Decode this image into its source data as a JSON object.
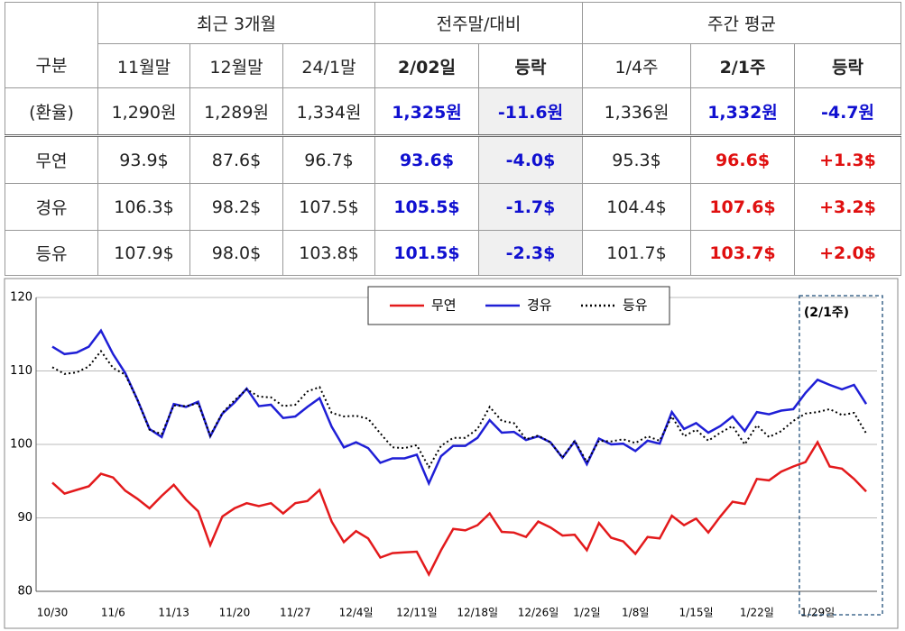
{
  "table": {
    "group_headers": [
      "최근 3개월",
      "전주말/대비",
      "주간 평균"
    ],
    "columns": [
      "구분",
      "11월말",
      "12월말",
      "24/1말",
      "2/02일",
      "등락",
      "1/4주",
      "2/1주",
      "등락"
    ],
    "rows": [
      [
        "(환율)",
        "1,290원",
        "1,289원",
        "1,334원",
        "1,325원",
        "-11.6원",
        "1,336원",
        "1,332원",
        "-4.7원"
      ],
      [
        "무연",
        "93.9$",
        "87.6$",
        "96.7$",
        "93.6$",
        "-4.0$",
        "95.3$",
        "96.6$",
        "+1.3$"
      ],
      [
        "경유",
        "106.3$",
        "98.2$",
        "107.5$",
        "105.5$",
        "-1.7$",
        "104.4$",
        "107.6$",
        "+3.2$"
      ],
      [
        "등유",
        "107.9$",
        "98.0$",
        "103.8$",
        "101.5$",
        "-2.3$",
        "101.7$",
        "103.7$",
        "+2.0$"
      ]
    ]
  },
  "chart_data": {
    "type": "line",
    "categories": [
      "10/30",
      null,
      null,
      null,
      null,
      "11/6",
      null,
      null,
      null,
      null,
      "11/13",
      null,
      null,
      null,
      null,
      "11/20",
      null,
      null,
      null,
      null,
      "11/27",
      null,
      null,
      null,
      null,
      "12/4일",
      null,
      null,
      null,
      null,
      "12/11일",
      null,
      null,
      null,
      null,
      "12/18일",
      null,
      null,
      null,
      null,
      "12/26일",
      null,
      null,
      null,
      "1/2일",
      null,
      null,
      null,
      "1/8일",
      null,
      null,
      null,
      null,
      "1/15일",
      null,
      null,
      null,
      null,
      "1/22일",
      null,
      null,
      null,
      null,
      "1/29일",
      null,
      null,
      null,
      null
    ],
    "series": [
      {
        "name": "무연",
        "color": "#e31a1c",
        "style": "solid",
        "values": [
          94.8,
          93.3,
          93.8,
          94.3,
          96.0,
          95.5,
          93.7,
          92.6,
          91.3,
          93.0,
          94.5,
          92.5,
          90.9,
          86.3,
          90.2,
          91.3,
          92.0,
          91.6,
          92.0,
          90.6,
          92.0,
          92.3,
          93.8,
          89.5,
          86.7,
          88.2,
          87.2,
          84.6,
          85.2,
          85.3,
          85.4,
          82.3,
          85.6,
          88.5,
          88.3,
          89.0,
          90.6,
          88.1,
          88.0,
          87.4,
          89.5,
          88.7,
          87.6,
          87.7,
          85.6,
          89.3,
          87.3,
          86.8,
          85.1,
          87.4,
          87.2,
          90.3,
          89.0,
          89.9,
          88.0,
          90.2,
          92.2,
          91.9,
          95.3,
          95.1,
          96.3,
          97.0,
          97.6,
          100.3,
          97.0,
          96.7,
          95.3,
          93.6
        ]
      },
      {
        "name": "경유",
        "color": "#1f1fd6",
        "style": "solid",
        "values": [
          113.3,
          112.3,
          112.5,
          113.3,
          115.5,
          112.3,
          109.7,
          106.1,
          102.1,
          101.0,
          105.5,
          105.1,
          105.8,
          101.1,
          104.2,
          105.7,
          107.6,
          105.2,
          105.4,
          103.6,
          103.8,
          105.1,
          106.3,
          102.4,
          99.6,
          100.3,
          99.5,
          97.5,
          98.1,
          98.1,
          98.6,
          94.7,
          98.4,
          99.8,
          99.8,
          100.9,
          103.3,
          101.6,
          101.7,
          100.6,
          101.1,
          100.3,
          98.2,
          100.4,
          97.3,
          100.8,
          100.0,
          100.1,
          99.1,
          100.5,
          100.1,
          104.4,
          102.1,
          102.9,
          101.6,
          102.5,
          103.8,
          101.8,
          104.4,
          104.1,
          104.6,
          104.8,
          107.0,
          108.8,
          108.1,
          107.5,
          108.1,
          105.5
        ]
      },
      {
        "name": "등유",
        "color": "#000000",
        "style": "dotted",
        "values": [
          110.5,
          109.6,
          109.8,
          110.6,
          112.7,
          110.4,
          109.5,
          106.1,
          102.0,
          101.4,
          105.3,
          105.2,
          105.6,
          101.2,
          104.3,
          106.0,
          107.5,
          106.5,
          106.4,
          105.2,
          105.4,
          107.2,
          107.8,
          104.3,
          103.8,
          103.9,
          103.5,
          101.5,
          99.6,
          99.5,
          99.9,
          96.9,
          99.8,
          100.9,
          100.9,
          102.1,
          105.1,
          103.2,
          102.9,
          100.7,
          101.2,
          100.3,
          98.2,
          100.5,
          97.6,
          100.5,
          100.4,
          100.7,
          100.2,
          101.1,
          100.5,
          103.8,
          101.1,
          102.0,
          100.5,
          101.6,
          102.5,
          100.0,
          102.6,
          101.0,
          101.8,
          103.2,
          104.2,
          104.4,
          104.8,
          104.0,
          104.3,
          101.5
        ]
      }
    ],
    "ylim": [
      80,
      120
    ],
    "yticks": [
      80,
      90,
      100,
      110,
      120
    ],
    "grid": true,
    "legend": "top",
    "annotation": "(2/1주)"
  }
}
